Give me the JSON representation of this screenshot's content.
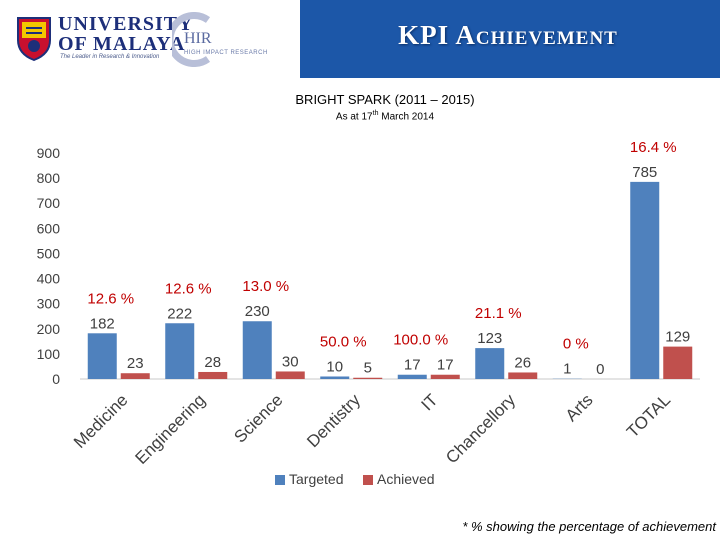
{
  "header": {
    "university_name_line1": "UNIVERSITY",
    "university_name_line2": "OF MALAYA",
    "university_tagline": "The Leader in Research & Innovation",
    "hir_label": "HIR",
    "hir_subtitle": "HIGH IMPACT RESEARCH",
    "title": "KPI Achievement"
  },
  "footnote": "* % showing the percentage of achievement",
  "chart_data": {
    "type": "bar",
    "title": "BRIGHT SPARK (2011 – 2015)",
    "subtitle_prefix": "As at 17",
    "subtitle_sup": "th",
    "subtitle_suffix": " March 2014",
    "categories": [
      "Medicine",
      "Engineering",
      "Science",
      "Dentistry",
      "IT",
      "Chancellory",
      "Arts",
      "TOTAL"
    ],
    "series": [
      {
        "name": "Targeted",
        "color": "#4f81bd",
        "values": [
          182,
          222,
          230,
          10,
          17,
          123,
          1,
          785
        ]
      },
      {
        "name": "Achieved",
        "color": "#c0504d",
        "values": [
          23,
          28,
          30,
          5,
          17,
          26,
          0,
          129
        ]
      }
    ],
    "percent_labels": [
      "12.6 %",
      "12.6 %",
      "13.0 %",
      "50.0 %",
      "100.0 %",
      "21.1 %",
      "0 %",
      "16.4 %"
    ],
    "percent_color": "#c00000",
    "ylim": [
      0,
      900
    ],
    "yticks": [
      0,
      100,
      200,
      300,
      400,
      500,
      600,
      700,
      800,
      900
    ],
    "grid": false,
    "legend_position": "bottom"
  }
}
